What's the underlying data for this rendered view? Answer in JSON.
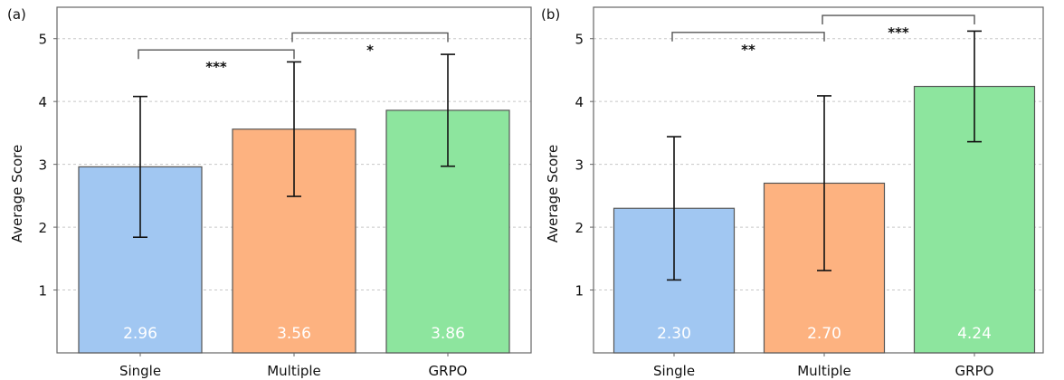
{
  "chart_data": [
    {
      "type": "bar",
      "panel_label": "(a)",
      "title": "",
      "xlabel": "",
      "ylabel": "Average Score",
      "ylim": [
        0,
        5.5
      ],
      "yticks": [
        1,
        2,
        3,
        4,
        5
      ],
      "grid": "y-dashed",
      "categories": [
        "Single",
        "Multiple",
        "GRPO"
      ],
      "values": [
        2.96,
        3.56,
        3.86
      ],
      "value_labels": [
        "2.96",
        "3.56",
        "3.86"
      ],
      "errors": [
        1.12,
        1.07,
        0.89
      ],
      "colors": [
        "#a1c7f2",
        "#fdb280",
        "#8de59e"
      ],
      "significance": [
        {
          "from": 0,
          "to": 1,
          "label": "***",
          "level": 4.82
        },
        {
          "from": 1,
          "to": 2,
          "label": "*",
          "level": 5.09
        }
      ]
    },
    {
      "type": "bar",
      "panel_label": "(b)",
      "title": "",
      "xlabel": "",
      "ylabel": "Average Score",
      "ylim": [
        0,
        5.5
      ],
      "yticks": [
        1,
        2,
        3,
        4,
        5
      ],
      "grid": "y-dashed",
      "categories": [
        "Single",
        "Multiple",
        "GRPO"
      ],
      "values": [
        2.3,
        2.7,
        4.24
      ],
      "value_labels": [
        "2.30",
        "2.70",
        "4.24"
      ],
      "errors": [
        1.14,
        1.39,
        0.88
      ],
      "colors": [
        "#a1c7f2",
        "#fdb280",
        "#8de59e"
      ],
      "significance": [
        {
          "from": 0,
          "to": 1,
          "label": "**",
          "level": 5.1
        },
        {
          "from": 1,
          "to": 2,
          "label": "***",
          "level": 5.37
        }
      ]
    }
  ]
}
